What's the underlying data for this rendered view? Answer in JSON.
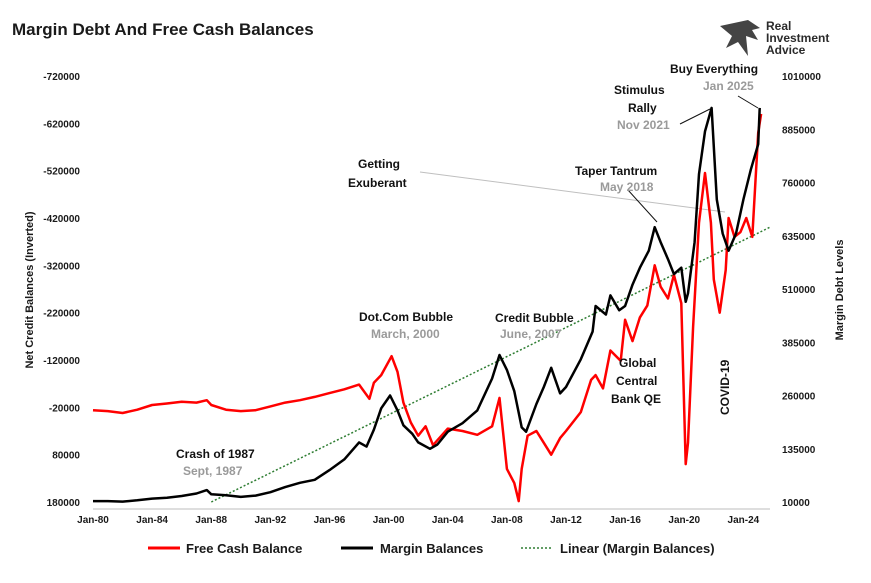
{
  "title": "Margin Debt And Free Cash Balances",
  "brand": {
    "line1": "Real",
    "line2": "Investment",
    "line3": "Advice"
  },
  "colors": {
    "free_cash": "#ff0000",
    "margin": "#000000",
    "trend": "#2e7d32"
  },
  "chart_data": {
    "type": "line",
    "title": "Margin Debt And Free Cash Balances",
    "xlabel": "",
    "ylabel_left": "Net Credit Balances (Inverted)",
    "ylabel_right": "Margin Debt Levels",
    "x_ticks": [
      "Jan-80",
      "Jan-84",
      "Jan-88",
      "Jan-92",
      "Jan-96",
      "Jan-00",
      "Jan-04",
      "Jan-08",
      "Jan-12",
      "Jan-16",
      "Jan-20",
      "Jan-24"
    ],
    "left_axis": {
      "inverted": true,
      "ylim": [
        180000,
        -720000
      ],
      "ticks": [
        "-720000",
        "-620000",
        "-520000",
        "-420000",
        "-320000",
        "-220000",
        "-120000",
        "-20000",
        "80000",
        "180000"
      ]
    },
    "right_axis": {
      "ylim": [
        10000,
        1010000
      ],
      "ticks": [
        "1010000",
        "885000",
        "760000",
        "635000",
        "510000",
        "385000",
        "260000",
        "135000",
        "10000"
      ]
    },
    "grid": false,
    "legend_position": "bottom",
    "series": [
      {
        "name": "Free Cash Balance",
        "axis": "left",
        "color": "#ff0000",
        "x": [
          1980,
          1981,
          1982,
          1983,
          1984,
          1985,
          1986,
          1987,
          1987.7,
          1988,
          1989,
          1990,
          1991,
          1992,
          1993,
          1994,
          1995,
          1996,
          1997,
          1998,
          1998.7,
          1999,
          1999.5,
          2000.2,
          2000.6,
          2001,
          2001.5,
          2002,
          2002.5,
          2003,
          2004,
          2005,
          2006,
          2007,
          2007.5,
          2008,
          2008.5,
          2008.8,
          2009,
          2009.4,
          2010,
          2010.5,
          2011,
          2011.6,
          2012,
          2013,
          2013.7,
          2014,
          2014.5,
          2015,
          2015.7,
          2016,
          2016.5,
          2017,
          2017.5,
          2018,
          2018.4,
          2018.9,
          2019.3,
          2019.8,
          2020.1,
          2020.25,
          2020.6,
          2021,
          2021.4,
          2021.8,
          2022,
          2022.4,
          2022.8,
          2023,
          2023.4,
          2023.8,
          2024.2,
          2024.6,
          2025,
          2025.2
        ],
        "values": [
          -14000,
          -12000,
          -8000,
          -15000,
          -25000,
          -28000,
          -32000,
          -30000,
          -35000,
          -25000,
          -15000,
          -12000,
          -14000,
          -22000,
          -30000,
          -35000,
          -42000,
          -50000,
          -58000,
          -68000,
          -38000,
          -72000,
          -88000,
          -128000,
          -95000,
          -30000,
          12000,
          40000,
          20000,
          60000,
          25000,
          30000,
          38000,
          20000,
          -40000,
          110000,
          140000,
          178000,
          110000,
          40000,
          30000,
          55000,
          80000,
          45000,
          30000,
          -10000,
          -78000,
          -88000,
          -60000,
          -140000,
          -118000,
          -205000,
          -160000,
          -210000,
          -235000,
          -320000,
          -275000,
          -250000,
          -300000,
          -240000,
          100000,
          55000,
          -190000,
          -410000,
          -515000,
          -410000,
          -290000,
          -220000,
          -310000,
          -420000,
          -380000,
          -390000,
          -420000,
          -380000,
          -600000,
          -640000
        ]
      },
      {
        "name": "Margin Balances",
        "axis": "right",
        "color": "#000000",
        "x": [
          1980,
          1981,
          1982,
          1983,
          1984,
          1985,
          1986,
          1987,
          1987.7,
          1988,
          1989,
          1990,
          1991,
          1992,
          1993,
          1994,
          1995,
          1996,
          1997,
          1998,
          1998.5,
          1999,
          1999.5,
          2000.1,
          2000.6,
          2001,
          2001.6,
          2002,
          2002.8,
          2003.3,
          2004,
          2005,
          2006,
          2007,
          2007.5,
          2008,
          2008.5,
          2009,
          2009.3,
          2010,
          2010.5,
          2011,
          2011.6,
          2012,
          2013,
          2013.8,
          2014,
          2014.7,
          2015,
          2015.6,
          2016,
          2016.5,
          2017,
          2017.6,
          2018,
          2018.4,
          2018.9,
          2019.3,
          2019.8,
          2020.1,
          2020.25,
          2020.7,
          2021,
          2021.4,
          2021.85,
          2022.2,
          2022.6,
          2023,
          2023.5,
          2024,
          2024.5,
          2025,
          2025.1
        ],
        "values": [
          12000,
          12000,
          11000,
          14000,
          18000,
          20000,
          24000,
          30000,
          38000,
          28000,
          26000,
          22000,
          25000,
          33000,
          45000,
          55000,
          62000,
          85000,
          110000,
          150000,
          140000,
          180000,
          230000,
          260000,
          225000,
          190000,
          170000,
          150000,
          135000,
          145000,
          175000,
          195000,
          225000,
          300000,
          355000,
          320000,
          270000,
          185000,
          175000,
          240000,
          280000,
          325000,
          265000,
          280000,
          345000,
          410000,
          470000,
          450000,
          495000,
          460000,
          470000,
          520000,
          560000,
          600000,
          655000,
          620000,
          580000,
          545000,
          560000,
          480000,
          500000,
          620000,
          780000,
          880000,
          935000,
          720000,
          640000,
          600000,
          640000,
          720000,
          790000,
          850000,
          935000
        ]
      },
      {
        "name": "Linear (Margin Balances)",
        "axis": "right",
        "color": "#2e7d32",
        "x": [
          1988,
          2025.8
        ],
        "values": [
          10000,
          655000
        ]
      }
    ],
    "annotations": [
      {
        "label": "Crash of 1987",
        "date": "Sept, 1987"
      },
      {
        "label": "Dot.Com Bubble",
        "date": "March, 2000"
      },
      {
        "label": "Credit Bubble",
        "date": "June, 2007"
      },
      {
        "label": "Getting Exuberant",
        "date": ""
      },
      {
        "label": "Taper Tantrum",
        "date": "May 2018"
      },
      {
        "label": "Stimulus Rally",
        "date": "Nov 2021"
      },
      {
        "label": "Buy Everything",
        "date": "Jan 2025"
      },
      {
        "label": "Global Central Bank QE",
        "date": ""
      },
      {
        "label": "COVID-19",
        "date": ""
      }
    ]
  },
  "labels": {
    "crash_1": "Crash of 1987",
    "crash_2": "Sept, 1987",
    "dotcom_1": "Dot.Com Bubble",
    "dotcom_2": "March, 2000",
    "credit_1": "Credit Bubble",
    "credit_2": "June, 2007",
    "exub_1": "Getting",
    "exub_2": "Exuberant",
    "taper_1": "Taper Tantrum",
    "taper_2": "May 2018",
    "stim_1": "Stimulus",
    "stim_2": "Rally",
    "stim_3": "Nov 2021",
    "buy_1": "Buy Everything",
    "buy_2": "Jan 2025",
    "qe_1": "Global",
    "qe_2": "Central",
    "qe_3": "Bank QE",
    "covid": "COVID-19"
  },
  "legend": {
    "free_cash": "Free Cash Balance",
    "margin": "Margin Balances",
    "trend": "Linear (Margin Balances)"
  }
}
